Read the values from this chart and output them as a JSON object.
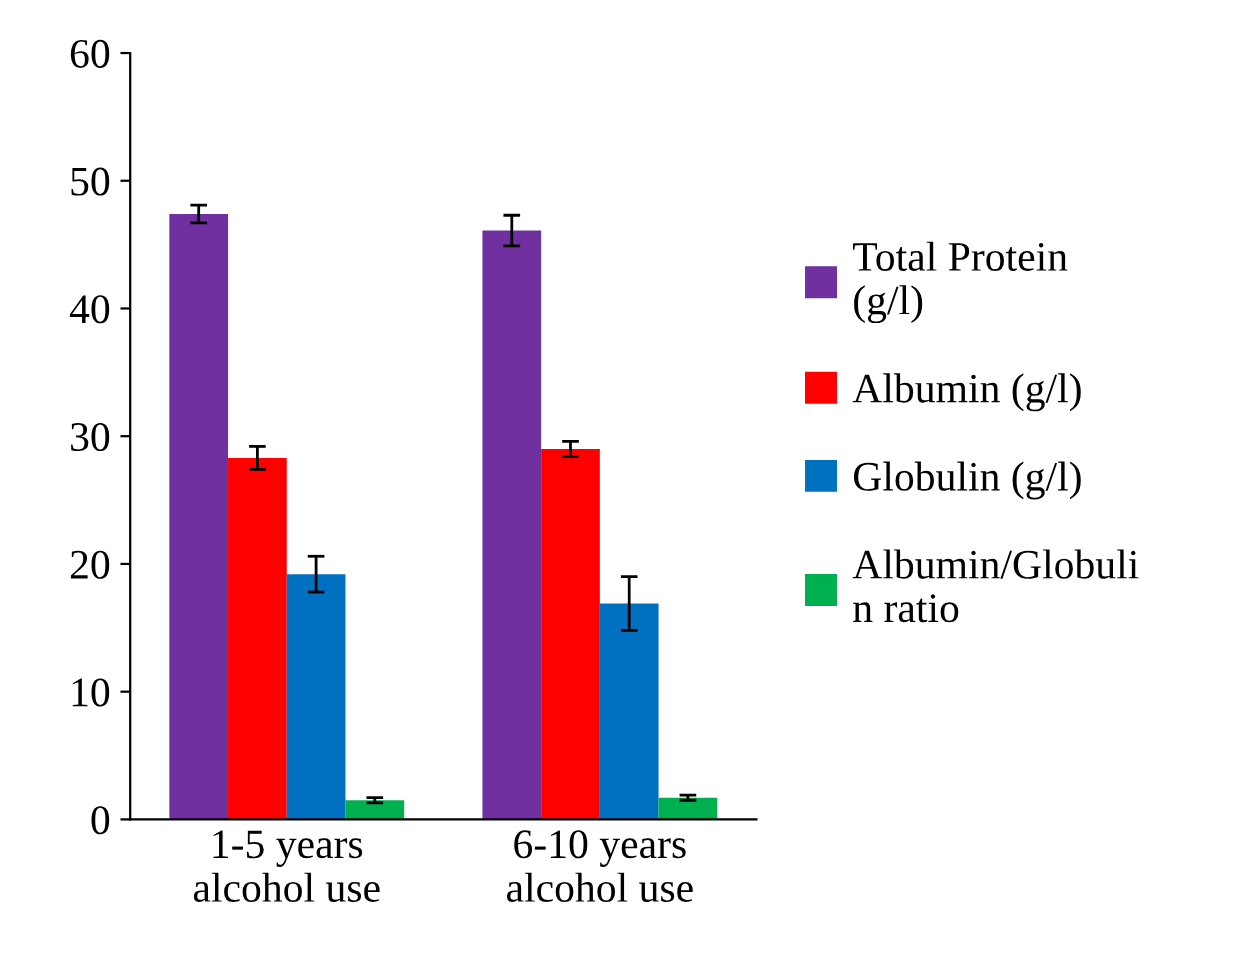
{
  "chart_data": {
    "type": "bar",
    "categories": [
      "1-5 years\nalcohol use",
      "6-10 years\nalcohol use"
    ],
    "series": [
      {
        "name": "Total Protein\n(g/l)",
        "color": "#7030a0",
        "values": [
          47.4,
          46.1
        ],
        "errors": [
          0.7,
          1.2
        ]
      },
      {
        "name": "Albumin (g/l)",
        "color": "#ff0000",
        "values": [
          28.3,
          29.0
        ],
        "errors": [
          0.9,
          0.6
        ]
      },
      {
        "name": "Globulin (g/l)",
        "color": "#0070c0",
        "values": [
          19.2,
          16.9
        ],
        "errors": [
          1.4,
          2.1
        ]
      },
      {
        "name": "Albumin/Globuli\nn ratio",
        "color": "#00b050",
        "values": [
          1.5,
          1.7
        ],
        "errors": [
          0.2,
          0.2
        ]
      }
    ],
    "ylim": [
      0,
      60
    ],
    "yticks": [
      0,
      10,
      20,
      30,
      40,
      50,
      60
    ],
    "grid": false,
    "legend": "right"
  }
}
